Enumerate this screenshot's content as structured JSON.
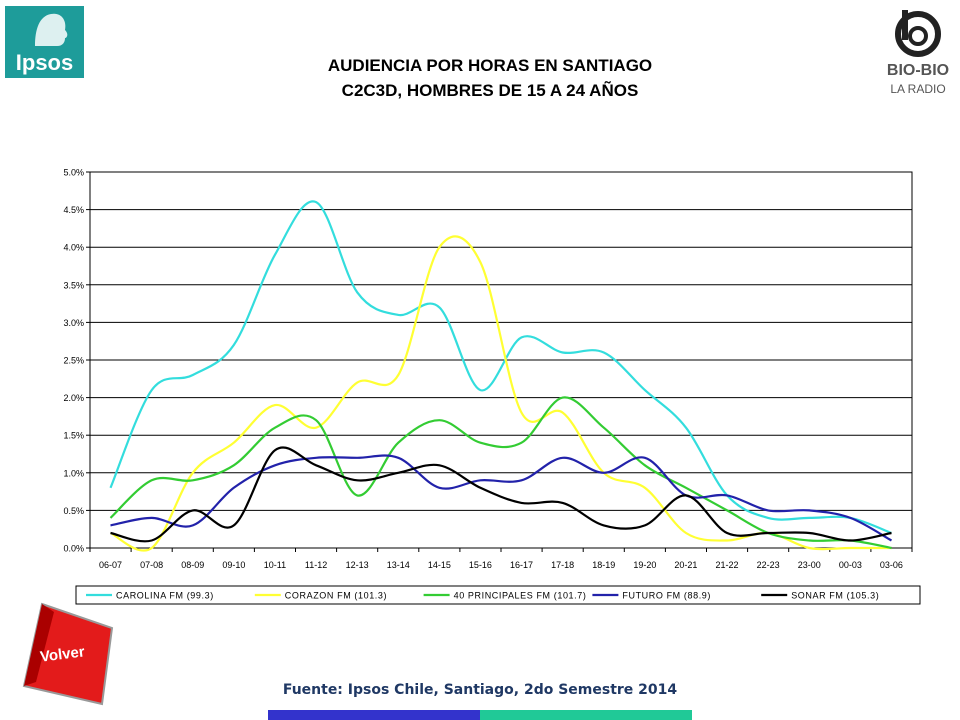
{
  "header": {
    "title_line1": "AUDIENCIA POR HORAS EN SANTIAGO",
    "title_line2": "C2C3D, HOMBRES DE 15 A 24 AÑOS",
    "logo_left": "Ipsos",
    "logo_right_line1": "BIO-BIO",
    "logo_right_line2": "LA RADIO"
  },
  "footer": {
    "back_button": "Volver",
    "source": "Fuente: Ipsos Chile, Santiago, 2do Semestre 2014",
    "bar_colors": [
      "#3333cc",
      "#20c997"
    ]
  },
  "chart_data": {
    "type": "line",
    "categories": [
      "06-07",
      "07-08",
      "08-09",
      "09-10",
      "10-11",
      "11-12",
      "12-13",
      "13-14",
      "14-15",
      "15-16",
      "16-17",
      "17-18",
      "18-19",
      "19-20",
      "20-21",
      "21-22",
      "22-23",
      "23-00",
      "00-03",
      "03-06"
    ],
    "y_ticks": [
      "0.0%",
      "0.5%",
      "1.0%",
      "1.5%",
      "2.0%",
      "2.5%",
      "3.0%",
      "3.5%",
      "4.0%",
      "4.5%",
      "5.0%"
    ],
    "ylim": [
      0,
      5
    ],
    "grid": true,
    "legend_position": "bottom",
    "series": [
      {
        "name": "CAROLINA FM (99.3)",
        "color": "#33dddd",
        "values": [
          0.8,
          2.1,
          2.3,
          2.7,
          3.9,
          4.6,
          3.4,
          3.1,
          3.2,
          2.1,
          2.8,
          2.6,
          2.6,
          2.1,
          1.6,
          0.7,
          0.4,
          0.4,
          0.4,
          0.2
        ]
      },
      {
        "name": "CORAZON FM (101.3)",
        "color": "#ffff33",
        "values": [
          0.2,
          0.0,
          1.0,
          1.4,
          1.9,
          1.6,
          2.2,
          2.3,
          4.0,
          3.8,
          1.8,
          1.8,
          1.0,
          0.8,
          0.2,
          0.1,
          0.2,
          0.0,
          0.0,
          0.0
        ]
      },
      {
        "name": "40 PRINCIPALES FM (101.7)",
        "color": "#33cc33",
        "values": [
          0.4,
          0.9,
          0.9,
          1.1,
          1.6,
          1.7,
          0.7,
          1.4,
          1.7,
          1.4,
          1.4,
          2.0,
          1.6,
          1.1,
          0.8,
          0.5,
          0.2,
          0.1,
          0.1,
          0.0
        ]
      },
      {
        "name": "FUTURO FM (88.9)",
        "color": "#2222aa",
        "values": [
          0.3,
          0.4,
          0.3,
          0.8,
          1.1,
          1.2,
          1.2,
          1.2,
          0.8,
          0.9,
          0.9,
          1.2,
          1.0,
          1.2,
          0.7,
          0.7,
          0.5,
          0.5,
          0.4,
          0.1
        ]
      },
      {
        "name": "SONAR FM (105.3)",
        "color": "#000000",
        "values": [
          0.2,
          0.1,
          0.5,
          0.3,
          1.3,
          1.1,
          0.9,
          1.0,
          1.1,
          0.8,
          0.6,
          0.6,
          0.3,
          0.3,
          0.7,
          0.2,
          0.2,
          0.2,
          0.1,
          0.2
        ]
      }
    ]
  }
}
